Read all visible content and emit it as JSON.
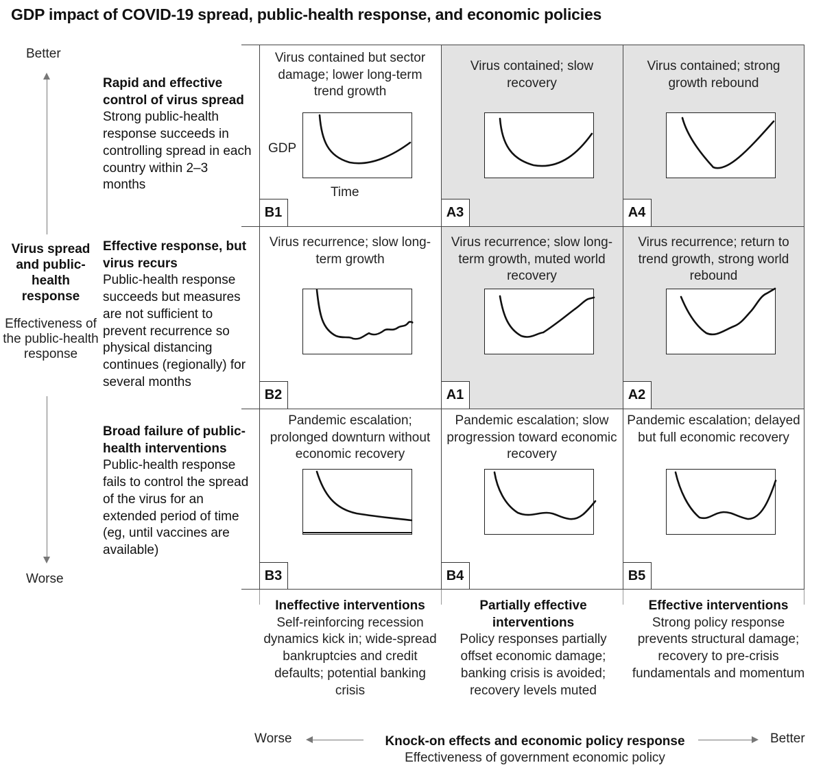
{
  "title": "GDP impact of COVID-19 spread, public-health response, and economic policies",
  "y_axis": {
    "better": "Better",
    "worse": "Worse",
    "title": "Virus spread and public-health response",
    "subtitle": "Effectiveness of the public-health response"
  },
  "rows": [
    {
      "heading": "Rapid and effective control of virus spread",
      "description": "Strong public-health response succeeds in controlling spread in each country within 2–3 months"
    },
    {
      "heading": "Effective response, but virus recurs",
      "description": "Public-health response succeeds but measures are not sufficient to prevent recurrence so physical distancing continues (regionally) for several months"
    },
    {
      "heading": "Broad failure of public-health interventions",
      "description": "Public-health response fails to control the spread of the virus for an extended period of time (eg, until vaccines are available)"
    }
  ],
  "scenarios": {
    "B1": {
      "label": "B1",
      "text": "Virus contained but sector damage; lower long-term trend growth",
      "shaded": false
    },
    "A3": {
      "label": "A3",
      "text": "Virus contained; slow recovery",
      "shaded": true
    },
    "A4": {
      "label": "A4",
      "text": "Virus contained; strong growth rebound",
      "shaded": true
    },
    "B2": {
      "label": "B2",
      "text": "Virus recurrence; slow long-term growth",
      "shaded": false
    },
    "A1": {
      "label": "A1",
      "text": "Virus recurrence; slow long-term growth, muted world recovery",
      "shaded": true
    },
    "A2": {
      "label": "A2",
      "text": "Virus recurrence; return to trend growth, strong world rebound",
      "shaded": true
    },
    "B3": {
      "label": "B3",
      "text": "Pandemic escalation; prolonged downturn without economic recovery",
      "shaded": false
    },
    "B4": {
      "label": "B4",
      "text": "Pandemic escalation; slow progression toward economic recovery",
      "shaded": false
    },
    "B5": {
      "label": "B5",
      "text": "Pandemic escalation; delayed but full economic recovery",
      "shaded": false
    }
  },
  "mini_chart_axes": {
    "y": "GDP",
    "x": "Time"
  },
  "columns": [
    {
      "heading": "Ineffective interventions",
      "description": "Self-reinforcing recession dynamics kick in; wide-spread bankruptcies and credit defaults; potential banking crisis"
    },
    {
      "heading": "Partially effective interventions",
      "description": "Policy responses partially offset economic damage; banking crisis is avoided; recovery levels muted"
    },
    {
      "heading": "Effective interventions",
      "description": "Strong policy response prevents structural damage; recovery to pre-crisis fundamentals and momentum"
    }
  ],
  "x_axis": {
    "worse": "Worse",
    "better": "Better",
    "title": "Knock-on effects and economic policy response",
    "subtitle": "Effectiveness of government economic policy"
  }
}
